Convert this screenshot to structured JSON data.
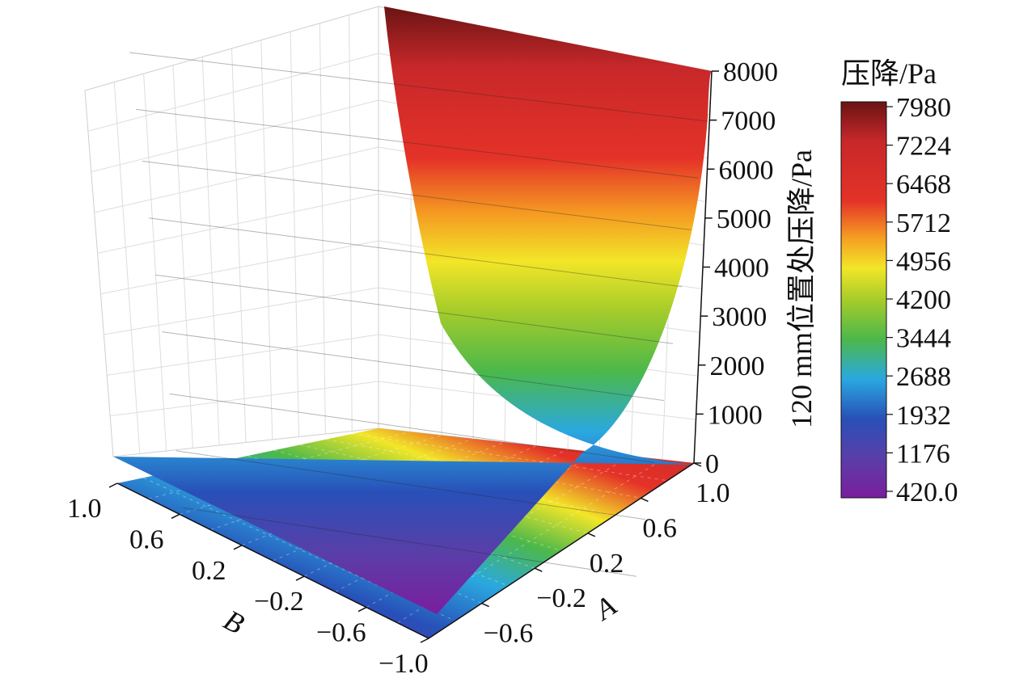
{
  "chart_data": {
    "type": "surface3d",
    "z_axis": {
      "label": "120 mm位置处压降/Pa",
      "ticks": [
        "0",
        "1000",
        "2000",
        "3000",
        "4000",
        "5000",
        "6000",
        "7000",
        "8000"
      ],
      "range": [
        0,
        8000
      ]
    },
    "x_axis": {
      "label": "A",
      "ticks": [
        "−0.6",
        "−0.2",
        "0.2",
        "0.6",
        "1.0"
      ],
      "range": [
        -1.0,
        1.0
      ]
    },
    "y_axis": {
      "label": "B",
      "ticks": [
        "1.0",
        "0.6",
        "0.2",
        "−0.2",
        "−0.6",
        "−1.0"
      ],
      "range": [
        -1.0,
        1.0
      ]
    },
    "colorbar": {
      "title": "压降/Pa",
      "labels": [
        "7980",
        "7224",
        "6468",
        "5712",
        "4956",
        "4200",
        "3444",
        "2688",
        "1932",
        "1176",
        "420.0"
      ],
      "min": 420.0,
      "max": 7980
    },
    "surface_samples": {
      "A": [
        -1.0,
        -0.6,
        -0.2,
        0.2,
        0.6,
        1.0
      ],
      "pressure_drop_Pa": [
        420,
        1150,
        2350,
        3950,
        5850,
        7980
      ]
    },
    "colormap": [
      "#7a1e9e",
      "#5a3ea8",
      "#2850b8",
      "#2aa8e0",
      "#4cb84a",
      "#a6cc2a",
      "#f2e628",
      "#f59a22",
      "#e43228",
      "#c8282a",
      "#6a1414"
    ]
  }
}
